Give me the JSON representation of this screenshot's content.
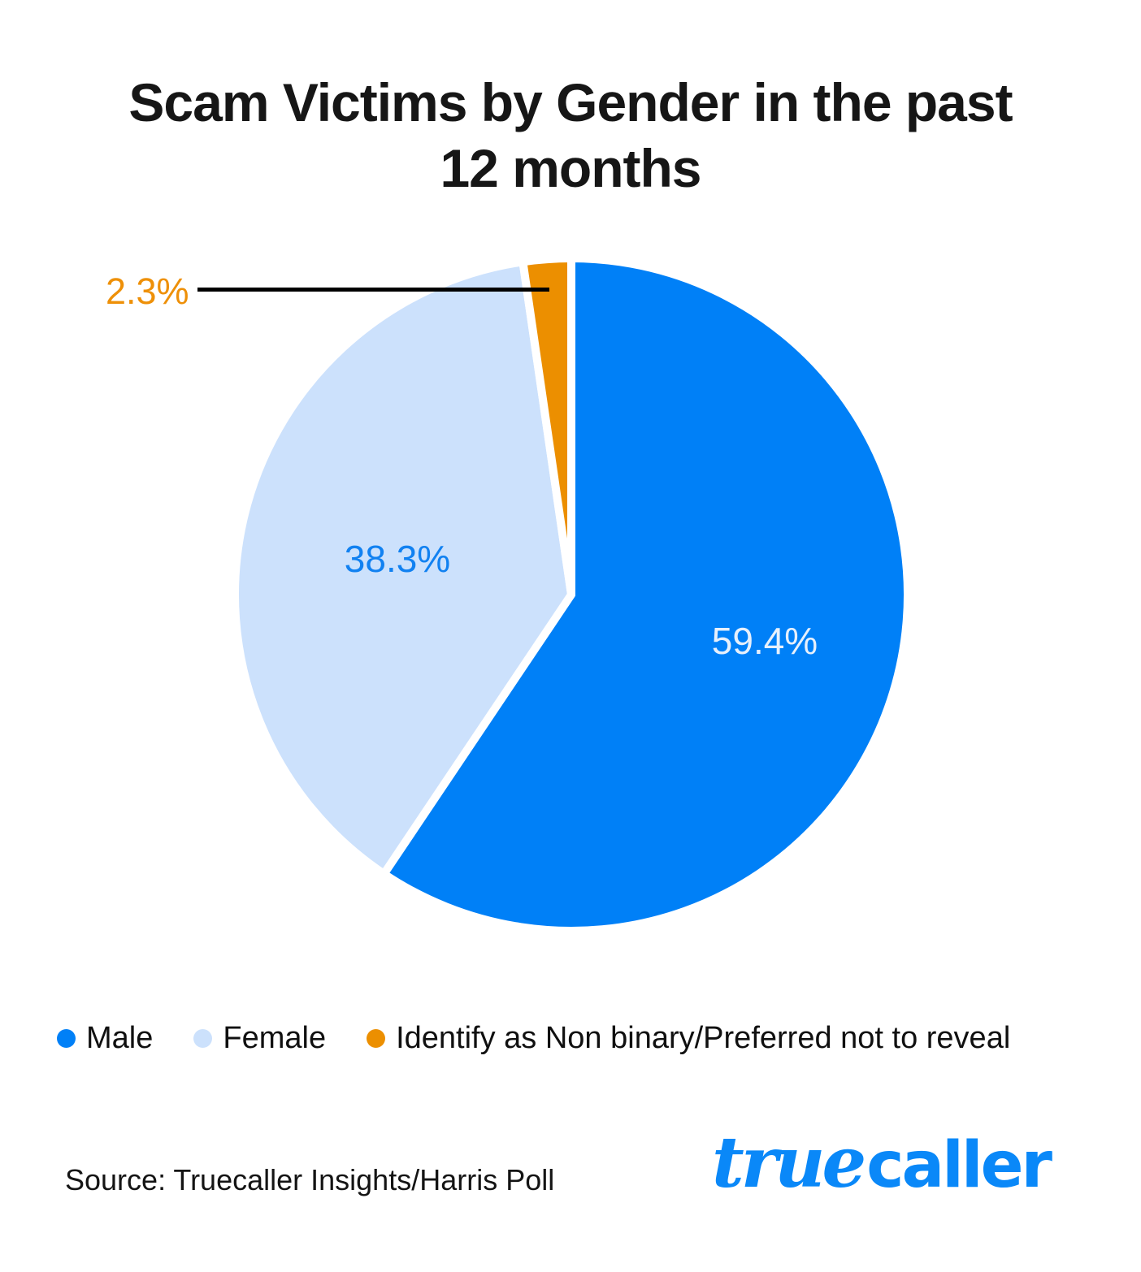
{
  "title": {
    "line1": "Scam Victims by Gender in the past",
    "line2": "12 months"
  },
  "chart_data": {
    "type": "pie",
    "title": "Scam Victims by Gender in the past 12 months",
    "categories": [
      "Male",
      "Female",
      "Identify as Non binary/Preferred not to reveal"
    ],
    "values": [
      59.4,
      38.3,
      2.3
    ],
    "value_labels": [
      "59.4%",
      "38.3%",
      "2.3%"
    ],
    "colors": [
      "#0080F7",
      "#CCE1FC",
      "#EC8F00"
    ],
    "value_label_colors": [
      "#E6F0FC",
      "#1181F1",
      "#EE9008"
    ],
    "start_angle_deg": -90,
    "direction": "clockwise",
    "slice_gap_color": "#FFFFFF",
    "legend_position": "bottom",
    "callout": {
      "label": "2.3%",
      "target_category": "Identify as Non binary/Preferred not to reveal"
    }
  },
  "legend": {
    "items": [
      {
        "label": "Male",
        "color": "#0080F7"
      },
      {
        "label": "Female",
        "color": "#CCE1FC"
      },
      {
        "label": "Identify as Non binary/Preferred not to reveal",
        "color": "#EC8F00"
      }
    ]
  },
  "footer": {
    "source_text": "Source: Truecaller Insights/Harris Poll",
    "logo": {
      "script_part": "true",
      "bold_part": "caller",
      "color": "#0A88F8"
    }
  }
}
